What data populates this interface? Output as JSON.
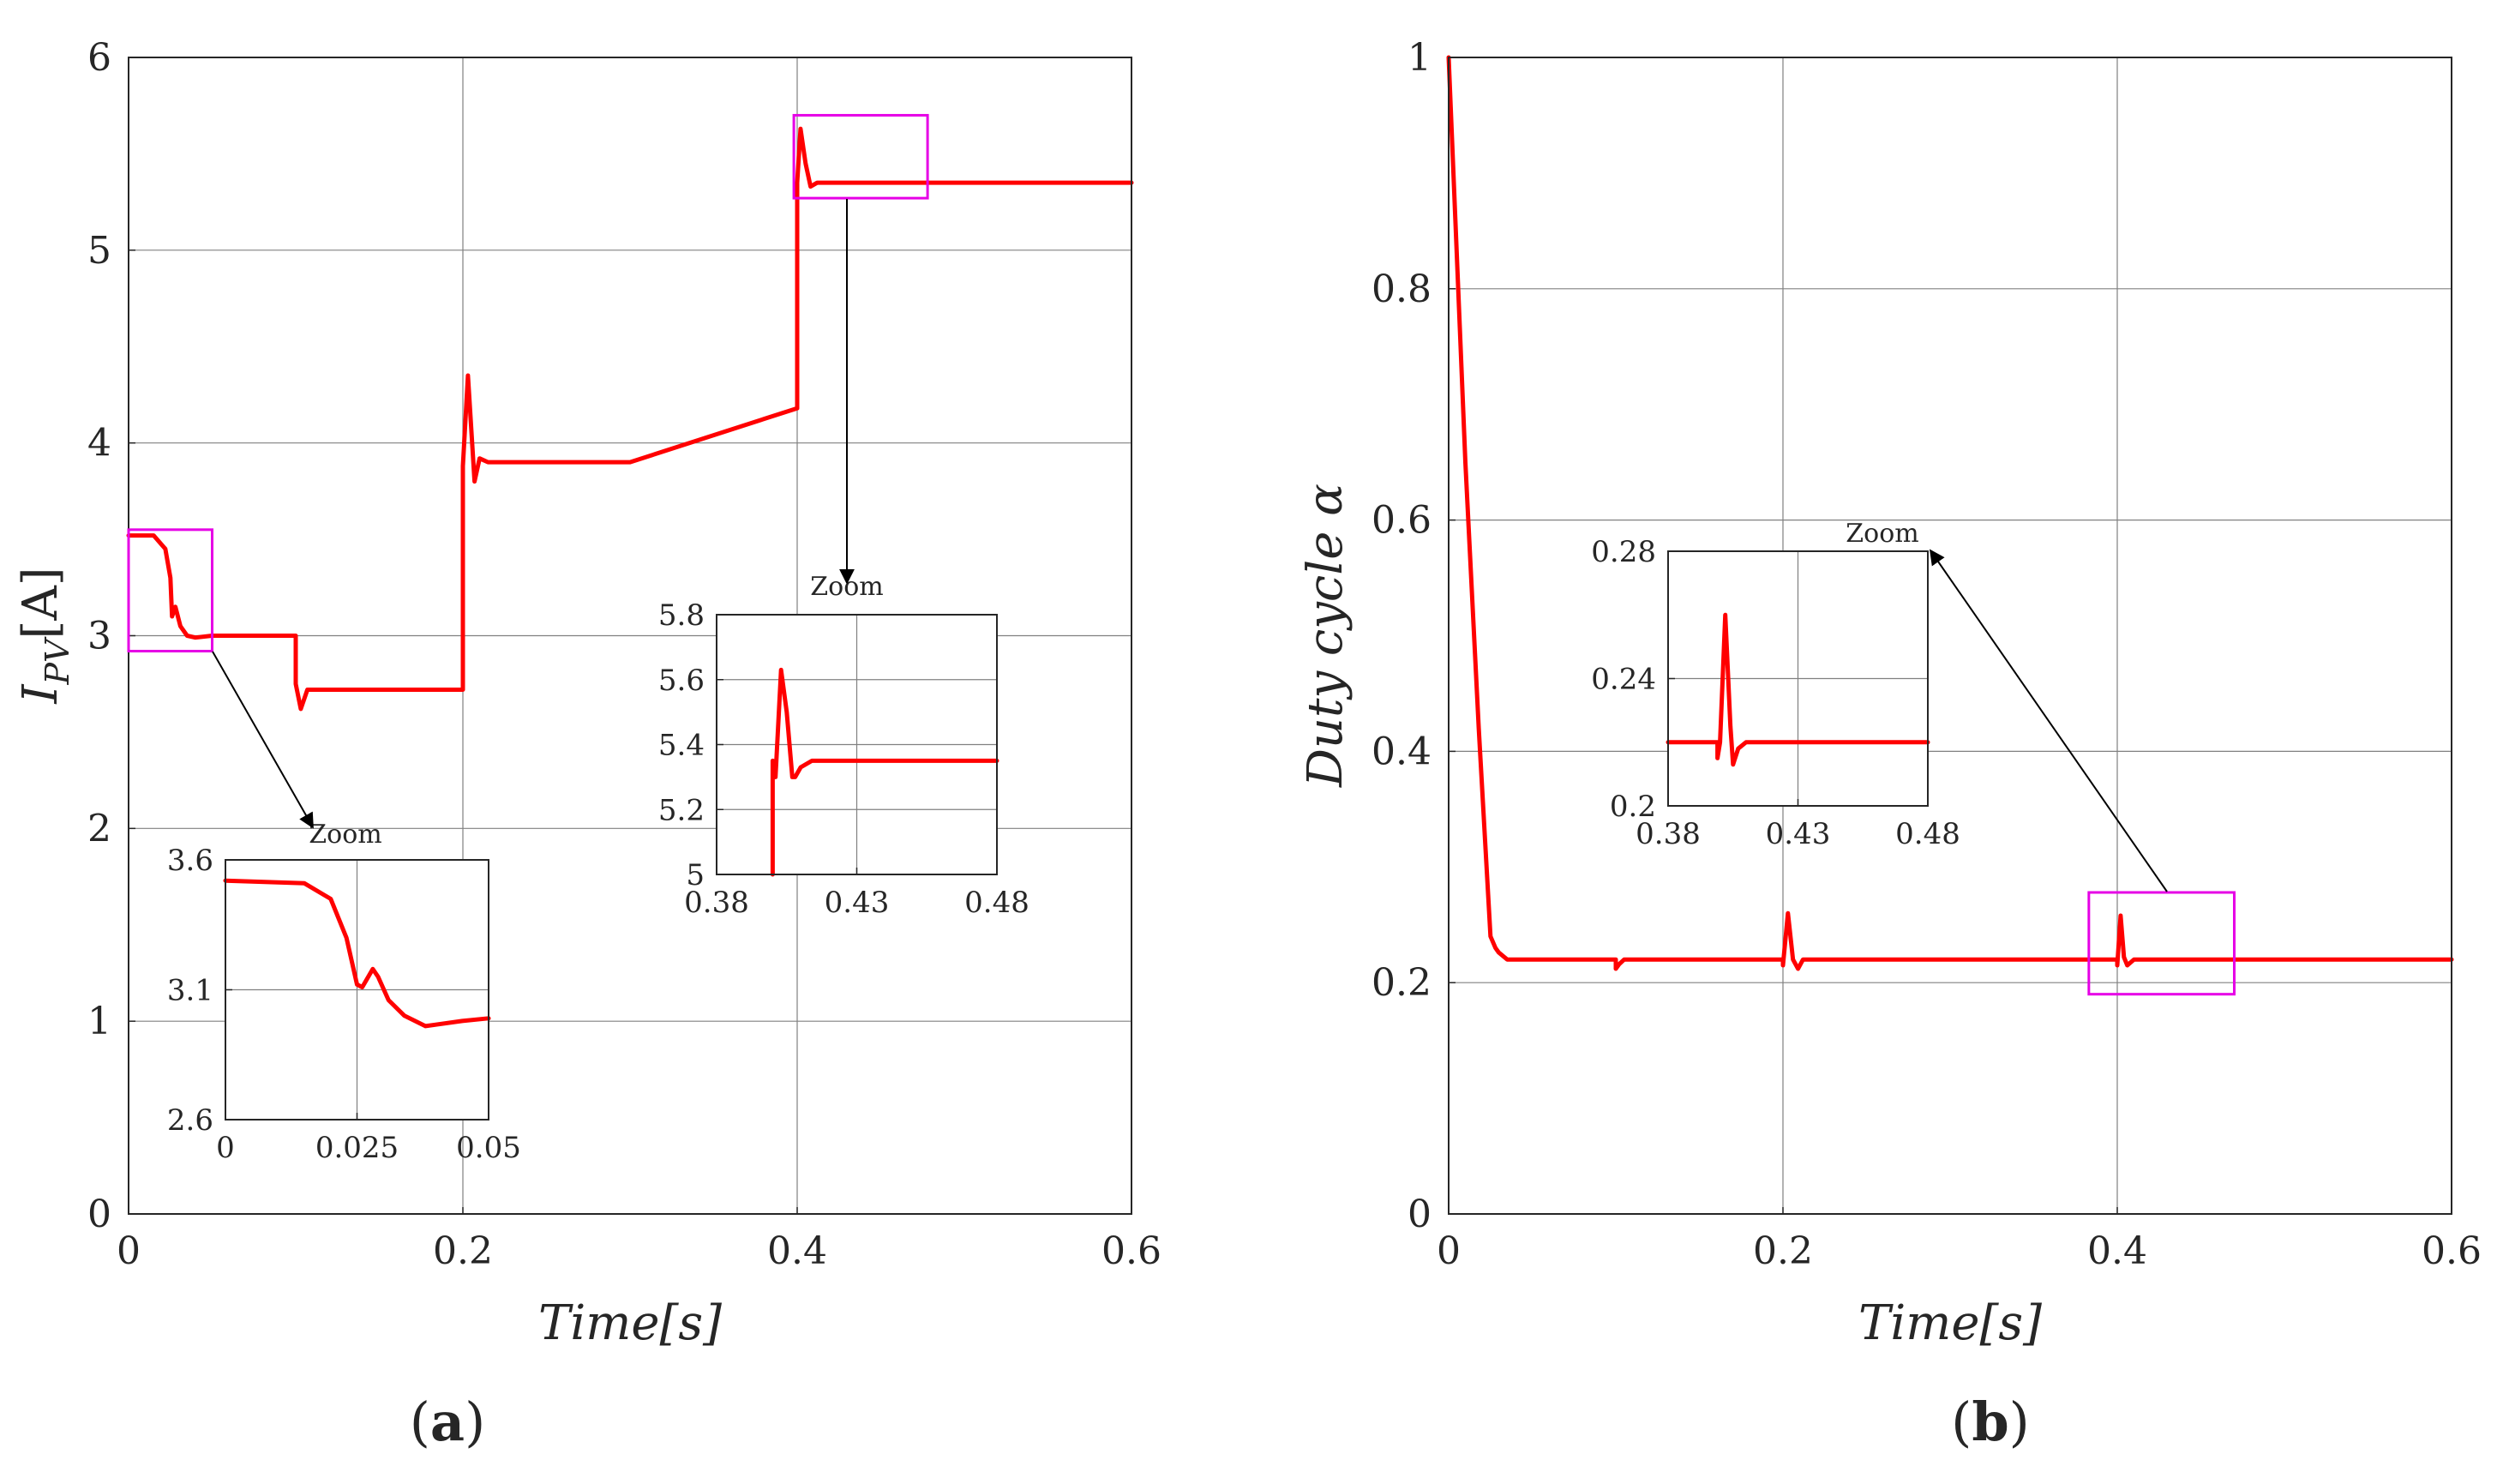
{
  "colors": {
    "line": "#ff0000",
    "box": "#e600e6",
    "grid": "#808080",
    "axis": "#262626",
    "arrow": "#000000"
  },
  "panel_labels": [
    {
      "open": "(",
      "letter": "a",
      "close": ")"
    },
    {
      "open": "(",
      "letter": "b",
      "close": ")"
    }
  ],
  "chart_data": [
    {
      "id": "a",
      "type": "line",
      "title": "",
      "xlabel": "Time[s]",
      "ylabel": "I_PV[A]",
      "ylabel_parts": {
        "main": "I",
        "sub": "PV",
        "unit": "[A]"
      },
      "xlim": [
        0,
        0.6
      ],
      "ylim": [
        0,
        6
      ],
      "xticks": [
        "0",
        "0.2",
        "0.4",
        "0.6"
      ],
      "yticks": [
        "0",
        "1",
        "2",
        "3",
        "4",
        "5",
        "6"
      ],
      "grid": true,
      "series": [
        {
          "name": "I_PV",
          "x": [
            0,
            0.015,
            0.022,
            0.025,
            0.026,
            0.028,
            0.031,
            0.035,
            0.04,
            0.05,
            0.1,
            0.1,
            0.103,
            0.107,
            0.112,
            0.2,
            0.2,
            0.203,
            0.207,
            0.21,
            0.215,
            0.3,
            0.4,
            0.4,
            0.402,
            0.405,
            0.408,
            0.412,
            0.42,
            0.6
          ],
          "y": [
            3.52,
            3.52,
            3.45,
            3.3,
            3.1,
            3.15,
            3.05,
            3.0,
            2.99,
            3.0,
            3.0,
            2.75,
            2.62,
            2.72,
            2.72,
            2.72,
            3.88,
            4.35,
            3.8,
            3.92,
            3.9,
            3.9,
            4.18,
            5.35,
            5.63,
            5.45,
            5.33,
            5.35,
            5.35,
            5.35
          ]
        }
      ],
      "zoom_boxes": [
        {
          "x": [
            0,
            0.05
          ],
          "y": [
            2.92,
            3.55
          ]
        },
        {
          "x": [
            0.398,
            0.478
          ],
          "y": [
            5.27,
            5.7
          ]
        }
      ],
      "insets": [
        {
          "label": "Zoom",
          "xlim": [
            0,
            0.05
          ],
          "ylim": [
            2.6,
            3.6
          ],
          "xticks": [
            "0",
            "0.025",
            "0.05"
          ],
          "yticks": [
            "2.6",
            "3.1",
            "3.6"
          ],
          "x": [
            0,
            0.015,
            0.02,
            0.023,
            0.025,
            0.026,
            0.028,
            0.029,
            0.031,
            0.034,
            0.038,
            0.045,
            0.05
          ],
          "y": [
            3.52,
            3.51,
            3.45,
            3.3,
            3.12,
            3.11,
            3.18,
            3.15,
            3.06,
            3.0,
            2.96,
            2.98,
            2.99
          ]
        },
        {
          "label": "Zoom",
          "xlim": [
            0.38,
            0.48
          ],
          "ylim": [
            5.0,
            5.8
          ],
          "xticks": [
            "0.38",
            "0.43",
            "0.48"
          ],
          "yticks": [
            "5",
            "5.2",
            "5.4",
            "5.6",
            "5.8"
          ],
          "x": [
            0.4,
            0.4,
            0.401,
            0.403,
            0.405,
            0.407,
            0.408,
            0.41,
            0.414,
            0.48
          ],
          "y": [
            5.0,
            5.35,
            5.3,
            5.63,
            5.5,
            5.3,
            5.3,
            5.33,
            5.35,
            5.35
          ]
        }
      ]
    },
    {
      "id": "b",
      "type": "line",
      "title": "",
      "xlabel": "Time[s]",
      "ylabel": "Duty cycle α",
      "xlim": [
        0,
        0.6
      ],
      "ylim": [
        0,
        1
      ],
      "xticks": [
        "0",
        "0.2",
        "0.4",
        "0.6"
      ],
      "yticks": [
        "0",
        "0.2",
        "0.4",
        "0.6",
        "0.8",
        "1"
      ],
      "grid": true,
      "series": [
        {
          "name": "Duty cycle",
          "x": [
            0,
            0.01,
            0.018,
            0.025,
            0.028,
            0.03,
            0.035,
            0.04,
            0.1,
            0.1,
            0.102,
            0.105,
            0.2,
            0.2,
            0.203,
            0.206,
            0.209,
            0.212,
            0.4,
            0.4,
            0.402,
            0.404,
            0.406,
            0.41,
            0.6
          ],
          "y": [
            1.0,
            0.65,
            0.42,
            0.24,
            0.23,
            0.226,
            0.22,
            0.22,
            0.22,
            0.212,
            0.216,
            0.22,
            0.22,
            0.215,
            0.26,
            0.22,
            0.212,
            0.22,
            0.22,
            0.215,
            0.258,
            0.222,
            0.215,
            0.22,
            0.22
          ]
        }
      ],
      "zoom_boxes": [
        {
          "x": [
            0.383,
            0.47
          ],
          "y": [
            0.19,
            0.278
          ]
        }
      ],
      "insets": [
        {
          "label": "Zoom",
          "xlim": [
            0.38,
            0.48
          ],
          "ylim": [
            0.2,
            0.28
          ],
          "xticks": [
            "0.38",
            "0.43",
            "0.48"
          ],
          "yticks": [
            "0.2",
            "0.24",
            "0.28"
          ],
          "x": [
            0.38,
            0.399,
            0.399,
            0.4,
            0.402,
            0.404,
            0.405,
            0.407,
            0.41,
            0.415,
            0.48
          ],
          "y": [
            0.22,
            0.22,
            0.215,
            0.22,
            0.26,
            0.225,
            0.213,
            0.218,
            0.22,
            0.22,
            0.22
          ]
        }
      ]
    }
  ]
}
